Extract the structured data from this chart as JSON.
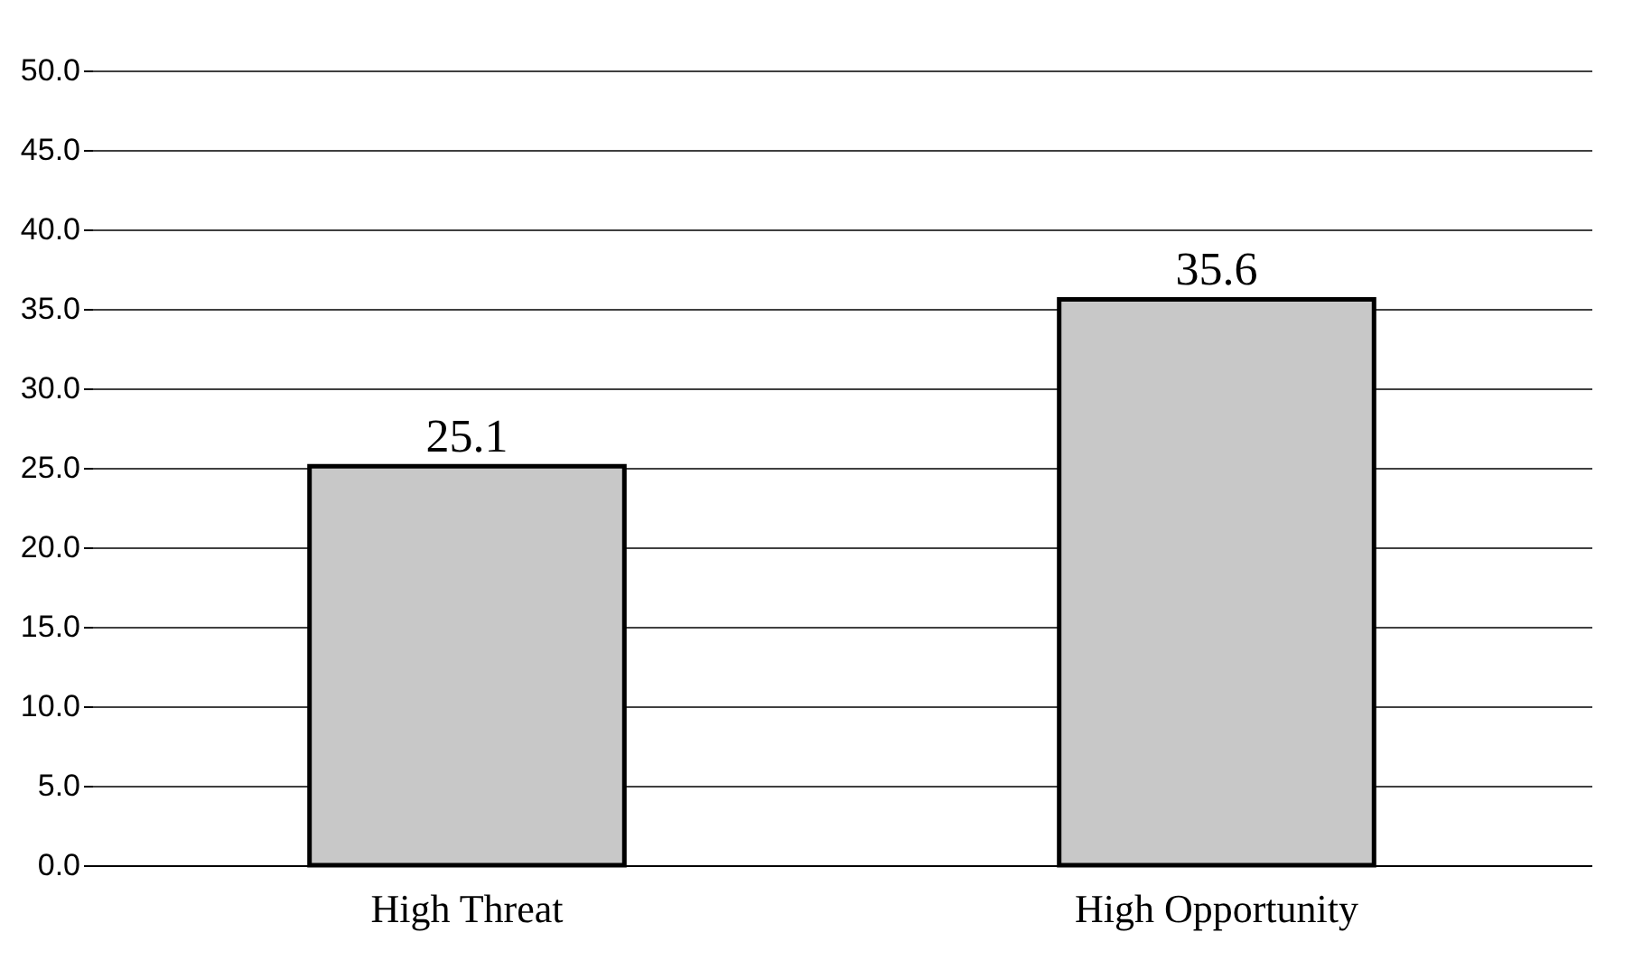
{
  "chart_data": {
    "type": "bar",
    "categories": [
      "High Threat",
      "High Opportunity"
    ],
    "series": [
      {
        "color": "#c8c8c8",
        "values": [
          25.1,
          35.6
        ]
      }
    ],
    "ylim": [
      0,
      50
    ],
    "yticks": [
      {
        "value": 0,
        "label": "0.0"
      },
      {
        "value": 5,
        "label": "5.0"
      },
      {
        "value": 10,
        "label": "10.0"
      },
      {
        "value": 15,
        "label": "15.0"
      },
      {
        "value": 20,
        "label": "20.0"
      },
      {
        "value": 25,
        "label": "25.0"
      },
      {
        "value": 30,
        "label": "30.0"
      },
      {
        "value": 35,
        "label": "35.0"
      },
      {
        "value": 40,
        "label": "40.0"
      },
      {
        "value": 45,
        "label": "45.0"
      },
      {
        "value": 50,
        "label": "50.0"
      }
    ],
    "grid": "y",
    "data_labels": true
  }
}
